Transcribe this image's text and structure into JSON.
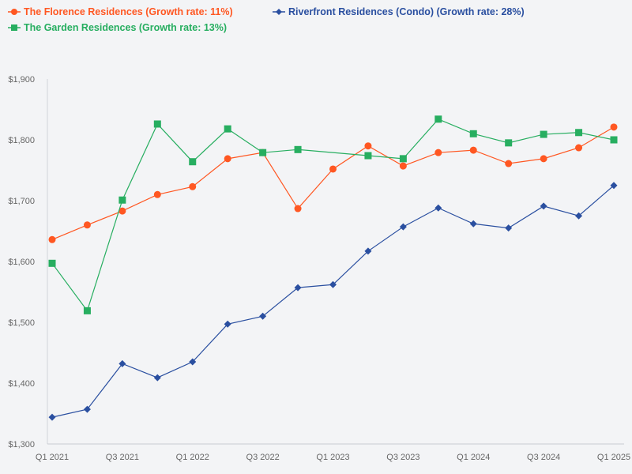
{
  "chart_data": {
    "type": "line",
    "title": "",
    "xlabel": "",
    "ylabel": "",
    "ylim": [
      1300,
      1900
    ],
    "yticks": [
      "$1,300",
      "$1,400",
      "$1,500",
      "$1,600",
      "$1,700",
      "$1,800",
      "$1,900"
    ],
    "ytick_values": [
      1300,
      1400,
      1500,
      1600,
      1700,
      1800,
      1900
    ],
    "categories": [
      "Q1 2021",
      "Q2 2021",
      "Q3 2021",
      "Q4 2021",
      "Q1 2022",
      "Q2 2022",
      "Q3 2022",
      "Q4 2022",
      "Q1 2023",
      "Q2 2023",
      "Q3 2023",
      "Q4 2023",
      "Q1 2024",
      "Q2 2024",
      "Q3 2024",
      "Q4 2024",
      "Q1 2025"
    ],
    "xtick_labels": [
      "Q1 2021",
      "Q3 2021",
      "Q1 2022",
      "Q3 2022",
      "Q1 2023",
      "Q3 2023",
      "Q1 2024",
      "Q3 2024",
      "Q1 2025"
    ],
    "grid": false,
    "legend_placement": "top-left",
    "series": [
      {
        "name": "The Florence Residences (Growth rate: 11%)",
        "color": "#ff5722",
        "marker": "circle",
        "values": [
          1636,
          1660,
          1683,
          1710,
          1723,
          1769,
          1779,
          1687,
          1752,
          1790,
          1757,
          1779,
          1783,
          1761,
          1769,
          1787,
          1821
        ]
      },
      {
        "name": "Riverfront Residences (Condo) (Growth rate: 28%)",
        "color": "#2a4fa0",
        "marker": "diamond",
        "values": [
          1344,
          1357,
          1432,
          1409,
          1435,
          1497,
          1510,
          1557,
          1562,
          1617,
          1657,
          1688,
          1662,
          1655,
          1691,
          1675,
          1725
        ]
      },
      {
        "name": "The Garden Residences (Growth rate: 13%)",
        "color": "#27ae60",
        "marker": "square",
        "values": [
          1597,
          1519,
          1701,
          1826,
          1764,
          1818,
          1779,
          1784,
          null,
          1774,
          1769,
          1834,
          1810,
          1795,
          1809,
          1812,
          1800
        ]
      }
    ]
  }
}
